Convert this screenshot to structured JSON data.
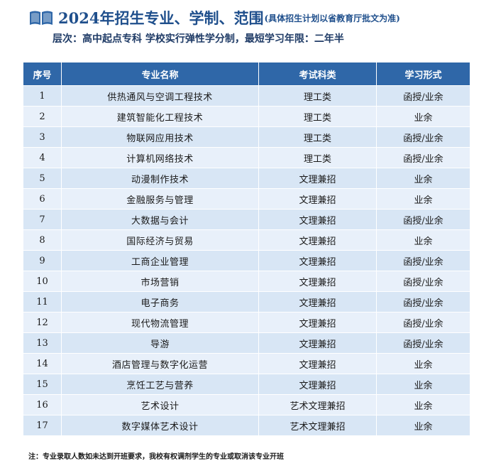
{
  "header": {
    "title": "2024年招生专业、学制、范围",
    "title_note": "(具体招生计划以省教育厅批文为准)",
    "subtitle": "层次：高中起点专科  学校实行弹性学分制，最短学习年限：二年半",
    "icon": "book-icon",
    "accent_color": "#1f4f8c"
  },
  "table": {
    "columns": [
      "序号",
      "专业名称",
      "考试科类",
      "学习形式"
    ],
    "header_color": "#2f67a8",
    "rows": [
      {
        "no": "1",
        "major": "供热通风与空调工程技术",
        "category": "理工类",
        "mode": "函授/业余"
      },
      {
        "no": "2",
        "major": "建筑智能化工程技术",
        "category": "理工类",
        "mode": "业余"
      },
      {
        "no": "3",
        "major": "物联网应用技术",
        "category": "理工类",
        "mode": "函授/业余"
      },
      {
        "no": "4",
        "major": "计算机网络技术",
        "category": "理工类",
        "mode": "函授/业余"
      },
      {
        "no": "5",
        "major": "动漫制作技术",
        "category": "文理兼招",
        "mode": "业余"
      },
      {
        "no": "6",
        "major": "金融服务与管理",
        "category": "文理兼招",
        "mode": "业余"
      },
      {
        "no": "7",
        "major": "大数据与会计",
        "category": "文理兼招",
        "mode": "函授/业余"
      },
      {
        "no": "8",
        "major": "国际经济与贸易",
        "category": "文理兼招",
        "mode": "业余"
      },
      {
        "no": "9",
        "major": "工商企业管理",
        "category": "文理兼招",
        "mode": "函授/业余"
      },
      {
        "no": "10",
        "major": "市场营销",
        "category": "文理兼招",
        "mode": "函授/业余"
      },
      {
        "no": "11",
        "major": "电子商务",
        "category": "文理兼招",
        "mode": "函授/业余"
      },
      {
        "no": "12",
        "major": "现代物流管理",
        "category": "文理兼招",
        "mode": "函授/业余"
      },
      {
        "no": "13",
        "major": "导游",
        "category": "文理兼招",
        "mode": "函授/业余"
      },
      {
        "no": "14",
        "major": "酒店管理与数字化运营",
        "category": "文理兼招",
        "mode": "业余"
      },
      {
        "no": "15",
        "major": "烹饪工艺与营养",
        "category": "文理兼招",
        "mode": "业余"
      },
      {
        "no": "16",
        "major": "艺术设计",
        "category": "艺术文理兼招",
        "mode": "业余"
      },
      {
        "no": "17",
        "major": "数字媒体艺术设计",
        "category": "艺术文理兼招",
        "mode": "业余"
      }
    ]
  },
  "footnote": "注：专业录取人数如未达到开班要求，我校有权调剂学生的专业或取消该专业开班"
}
